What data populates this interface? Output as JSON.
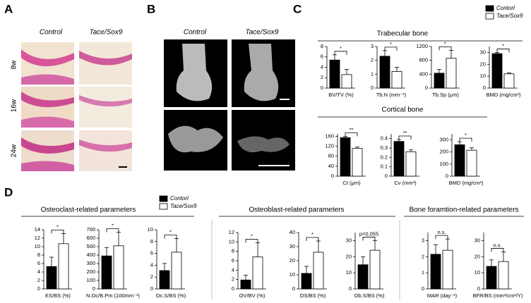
{
  "panel_labels": [
    "A",
    "B",
    "C",
    "D"
  ],
  "panel_a": {
    "columns": [
      "Control",
      "Tace/Sox9"
    ],
    "rows": [
      "8w",
      "16w",
      "24w"
    ]
  },
  "panel_b": {
    "columns": [
      "Control",
      "Tace/Sox9"
    ]
  },
  "legend_c": [
    {
      "name": "Contorl",
      "color": "#000000"
    },
    {
      "name": "Tace/Sox9",
      "color": "#ffffff"
    }
  ],
  "legend_d": [
    {
      "name": "Contorl",
      "color": "#000000"
    },
    {
      "name": "Tace/Sox9",
      "color": "#ffffff"
    }
  ],
  "group_titles": [
    "Trabecular bone",
    "Cortical bone",
    "Osteoclast-related parameters",
    "Osteoblast-related parameters",
    "Bone foramtion-related parameters"
  ],
  "chart_data": [
    {
      "type": "bar",
      "xlabel": "BV/TV (%)",
      "values": [
        5.4,
        2.6
      ],
      "errors": [
        1.0,
        1.0
      ],
      "colors": [
        "#000000",
        "#ffffff"
      ],
      "ylim": [
        0,
        8
      ],
      "yticks": [
        0,
        2,
        4,
        6,
        8
      ],
      "annotation": "*"
    },
    {
      "type": "bar",
      "xlabel": "Tb.N (mm⁻¹)",
      "values": [
        2.3,
        1.2
      ],
      "errors": [
        0.4,
        0.3
      ],
      "colors": [
        "#000000",
        "#ffffff"
      ],
      "ylim": [
        0,
        3
      ],
      "yticks": [
        0,
        1,
        2,
        3
      ],
      "annotation": "*"
    },
    {
      "type": "bar",
      "xlabel": "Tb.Sp (μm)",
      "values": [
        430,
        860
      ],
      "errors": [
        110,
        230
      ],
      "colors": [
        "#000000",
        "#ffffff"
      ],
      "ylim": [
        0,
        1200
      ],
      "yticks": [
        0,
        400,
        800,
        1200
      ],
      "annotation": "*"
    },
    {
      "type": "bar",
      "xlabel": "BMD (mg/cm³)",
      "values": [
        29,
        12
      ],
      "errors": [
        1,
        0.7
      ],
      "colors": [
        "#000000",
        "#ffffff"
      ],
      "ylim": [
        0,
        35
      ],
      "yticks": [
        0,
        10,
        20,
        30
      ],
      "annotation": "*"
    },
    {
      "type": "bar",
      "xlabel": "Ct (μm)",
      "values": [
        155,
        112
      ],
      "errors": [
        5,
        5
      ],
      "colors": [
        "#000000",
        "#ffffff"
      ],
      "ylim": [
        0,
        170
      ],
      "yticks": [
        0,
        40,
        80,
        120,
        160
      ],
      "annotation": "**"
    },
    {
      "type": "bar",
      "xlabel": "Cv (mm³)",
      "values": [
        0.37,
        0.26
      ],
      "errors": [
        0.02,
        0.02
      ],
      "colors": [
        "#000000",
        "#ffffff"
      ],
      "ylim": [
        0,
        0.45
      ],
      "yticks": [
        0,
        0.1,
        0.2,
        0.3,
        0.4
      ],
      "annotation": "**"
    },
    {
      "type": "bar",
      "xlabel": "BMD (mg/cm³)",
      "values": [
        260,
        215
      ],
      "errors": [
        25,
        20
      ],
      "colors": [
        "#000000",
        "#ffffff"
      ],
      "ylim": [
        0,
        350
      ],
      "yticks": [
        0,
        100,
        200,
        300
      ],
      "annotation": "*"
    },
    {
      "type": "bar",
      "xlabel": "ES/BS (%)",
      "values": [
        5.3,
        10.7
      ],
      "errors": [
        2.2,
        2.4
      ],
      "colors": [
        "#000000",
        "#ffffff"
      ],
      "ylim": [
        0,
        14
      ],
      "yticks": [
        0,
        2,
        4,
        6,
        8,
        10,
        12,
        14
      ],
      "annotation": "*"
    },
    {
      "type": "bar",
      "xlabel": "N.Oc/B.Pm (100mm⁻¹)",
      "values": [
        390,
        510
      ],
      "errors": [
        100,
        160
      ],
      "colors": [
        "#000000",
        "#ffffff"
      ],
      "ylim": [
        0,
        700
      ],
      "yticks": [
        0,
        100,
        200,
        300,
        400,
        500,
        600,
        700
      ],
      "annotation": "*"
    },
    {
      "type": "bar",
      "xlabel": "Oc.S/BS (%)",
      "values": [
        3.1,
        6.2
      ],
      "errors": [
        1.2,
        2.3
      ],
      "colors": [
        "#000000",
        "#ffffff"
      ],
      "ylim": [
        0,
        10
      ],
      "yticks": [
        0,
        2,
        4,
        6,
        8,
        10
      ],
      "annotation": "*"
    },
    {
      "type": "bar",
      "xlabel": "OV/BV (%)",
      "values": [
        1.9,
        6.8
      ],
      "errors": [
        1.0,
        3.0
      ],
      "colors": [
        "#000000",
        "#ffffff"
      ],
      "ylim": [
        0,
        12
      ],
      "yticks": [
        0,
        2,
        4,
        6,
        8,
        10,
        12
      ],
      "annotation": "*"
    },
    {
      "type": "bar",
      "xlabel": "OS/BS (%)",
      "values": [
        11,
        26
      ],
      "errors": [
        5,
        8
      ],
      "colors": [
        "#000000",
        "#ffffff"
      ],
      "ylim": [
        0,
        40
      ],
      "yticks": [
        0,
        10,
        20,
        30,
        40
      ],
      "annotation": "*"
    },
    {
      "type": "bar",
      "xlabel": "Ob.S/BS (%)",
      "values": [
        15,
        24
      ],
      "errors": [
        5,
        6
      ],
      "colors": [
        "#000000",
        "#ffffff"
      ],
      "ylim": [
        0,
        35
      ],
      "yticks": [
        0,
        10,
        20,
        30
      ],
      "annotation": "p=0.055"
    },
    {
      "type": "bar",
      "xlabel": "MAR (day⁻¹)",
      "values": [
        2.15,
        2.4
      ],
      "errors": [
        0.6,
        0.7
      ],
      "colors": [
        "#000000",
        "#ffffff"
      ],
      "ylim": [
        0,
        3.5
      ],
      "yticks": [
        0,
        1,
        2,
        3
      ],
      "annotation": "n.s."
    },
    {
      "type": "bar",
      "xlabel": "BFR/BS (mm³/cm²/Y)",
      "values": [
        14,
        17
      ],
      "errors": [
        4,
        6
      ],
      "colors": [
        "#000000",
        "#ffffff"
      ],
      "ylim": [
        0,
        35
      ],
      "yticks": [
        0,
        10,
        20,
        30
      ],
      "annotation": "n.s."
    }
  ]
}
